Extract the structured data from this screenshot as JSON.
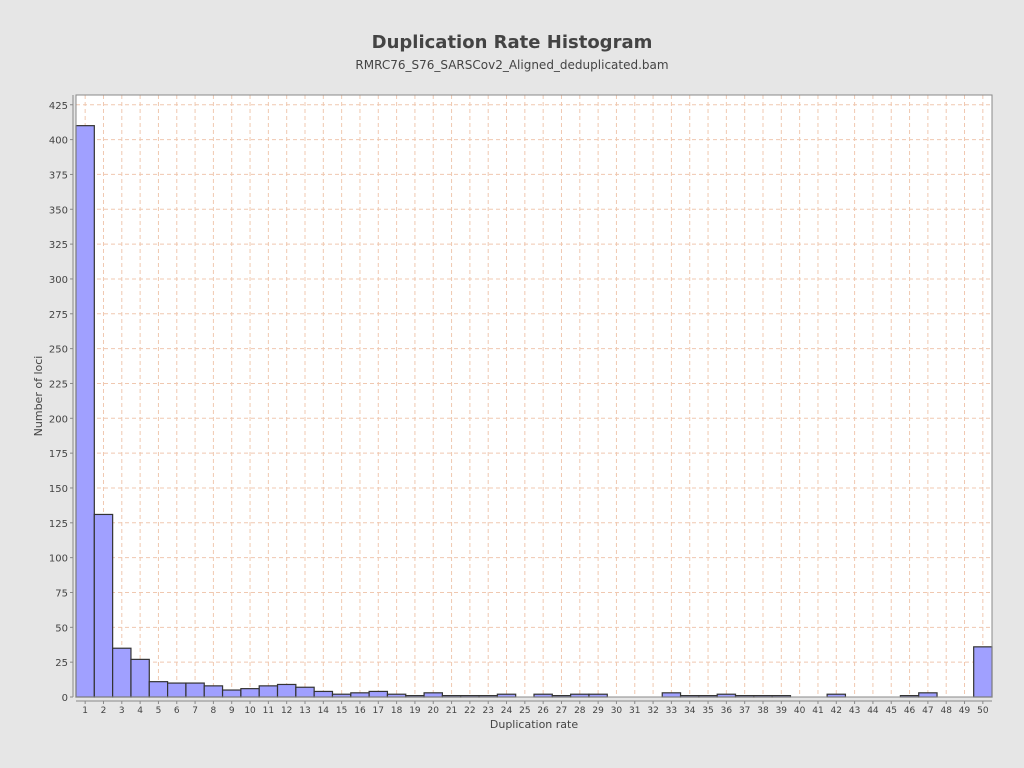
{
  "chart_data": {
    "type": "bar",
    "title": "Duplication Rate Histogram",
    "subtitle": "RMRC76_S76_SARSCov2_Aligned_deduplicated.bam",
    "xlabel": "Duplication rate",
    "ylabel": "Number of loci",
    "categories": [
      "1",
      "2",
      "3",
      "4",
      "5",
      "6",
      "7",
      "8",
      "9",
      "10",
      "11",
      "12",
      "13",
      "14",
      "15",
      "16",
      "17",
      "18",
      "19",
      "20",
      "21",
      "22",
      "23",
      "24",
      "25",
      "26",
      "27",
      "28",
      "29",
      "30",
      "31",
      "32",
      "33",
      "34",
      "35",
      "36",
      "37",
      "38",
      "39",
      "40",
      "41",
      "42",
      "43",
      "44",
      "45",
      "46",
      "47",
      "48",
      "49",
      "50"
    ],
    "values": [
      410,
      131,
      35,
      27,
      11,
      10,
      10,
      8,
      5,
      6,
      8,
      9,
      7,
      4,
      2,
      3,
      4,
      2,
      1,
      3,
      1,
      1,
      1,
      2,
      0,
      2,
      1,
      2,
      2,
      0,
      0,
      0,
      3,
      1,
      1,
      2,
      1,
      1,
      1,
      0,
      0,
      2,
      0,
      0,
      0,
      1,
      3,
      0,
      0,
      36
    ],
    "ylim": [
      0,
      432
    ],
    "yticks": [
      0,
      25,
      50,
      75,
      100,
      125,
      150,
      175,
      200,
      225,
      250,
      275,
      300,
      325,
      350,
      375,
      400,
      425
    ],
    "grid": true,
    "colors": {
      "bar_fill": "#a0a0ff",
      "bar_stroke": "#333333",
      "grid": "#f0c8b0",
      "plot_bg": "#ffffff",
      "page_bg": "#e6e6e6"
    }
  }
}
